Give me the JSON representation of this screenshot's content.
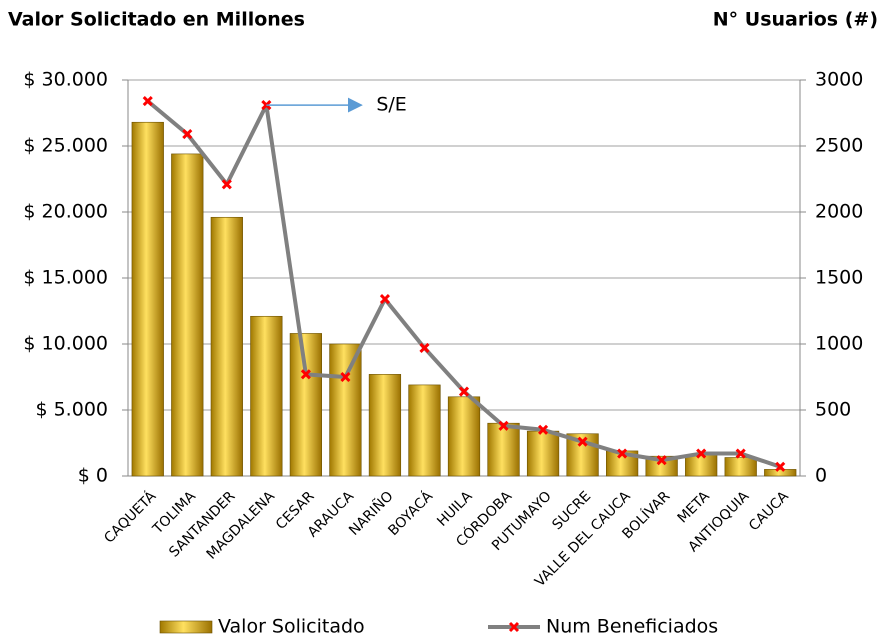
{
  "chart_data": {
    "type": "combo",
    "y_label": "Valor Solicitado en Millones",
    "y2_label": "N° Usuarios (#)",
    "categories": [
      "CAQUETÁ",
      "TOLIMA",
      "SANTANDER",
      "MAGDALENA",
      "CESAR",
      "ARAUCA",
      "NARIÑO",
      "BOYACÁ",
      "HUILA",
      "CÓRDOBA",
      "PUTUMAYO",
      "SUCRE",
      "VALLE DEL CAUCA",
      "BOLÍVAR",
      "META",
      "ANTIOQUIA",
      "CAUCA"
    ],
    "series": [
      {
        "name": "Valor Solicitado",
        "type": "bar",
        "color": "#e8c020",
        "values": [
          26800,
          24400,
          19600,
          12100,
          10800,
          10000,
          7700,
          6900,
          6000,
          4000,
          3400,
          3200,
          1900,
          1500,
          1600,
          1400,
          500
        ]
      },
      {
        "name": "Num Beneficiados",
        "type": "line",
        "axis": "y2",
        "color": "#808080",
        "marker_color": "#ff0000",
        "values": [
          2840,
          2590,
          2210,
          2810,
          770,
          750,
          1340,
          970,
          640,
          380,
          350,
          260,
          170,
          120,
          170,
          170,
          70
        ]
      }
    ],
    "annotations": [
      {
        "text": "S/E"
      }
    ],
    "ylim": [
      0,
      30000
    ],
    "yticks": [
      {
        "value": 0,
        "label": "$ 0"
      },
      {
        "value": 5000,
        "label": "$ 5.000"
      },
      {
        "value": 10000,
        "label": "$ 10.000"
      },
      {
        "value": 15000,
        "label": "$ 15.000"
      },
      {
        "value": 20000,
        "label": "$ 20.000"
      },
      {
        "value": 25000,
        "label": "$ 25.000"
      },
      {
        "value": 30000,
        "label": "$ 30.000"
      }
    ],
    "y2lim": [
      0,
      3000
    ],
    "y2ticks": [
      0,
      500,
      1000,
      1500,
      2000,
      2500,
      3000
    ],
    "grid": true,
    "legend": "bottom"
  }
}
